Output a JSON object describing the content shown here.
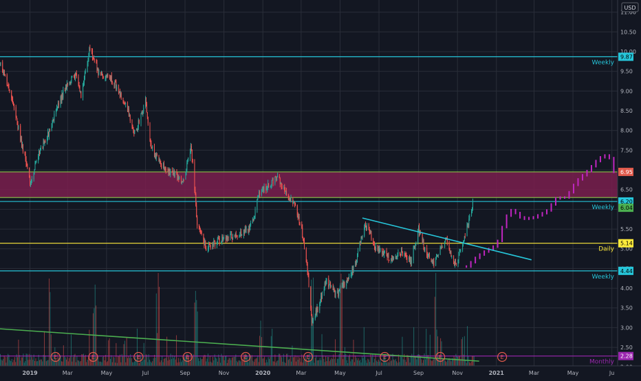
{
  "chart_data": {
    "type": "candlestick",
    "currency": "USD",
    "y_axis": {
      "range": [
        2.1,
        11.1
      ],
      "ticks": [
        "11.00",
        "10.50",
        "10.00",
        "9.50",
        "9.00",
        "8.50",
        "8.00",
        "7.50",
        "7.00",
        "6.50",
        "6.00",
        "5.50",
        "5.00",
        "4.50",
        "4.00",
        "3.50",
        "3.00",
        "2.50",
        "2.00"
      ]
    },
    "x_axis": {
      "range": [
        "2018-11-15",
        "2021-07-10"
      ],
      "ticks": [
        {
          "label": "2019",
          "date": "2019-01-01",
          "bold": true
        },
        {
          "label": "Mar",
          "date": "2019-03-01"
        },
        {
          "label": "May",
          "date": "2019-05-01"
        },
        {
          "label": "Jul",
          "date": "2019-07-01"
        },
        {
          "label": "Sep",
          "date": "2019-09-01"
        },
        {
          "label": "Nov",
          "date": "2019-11-01"
        },
        {
          "label": "2020",
          "date": "2020-01-01",
          "bold": true
        },
        {
          "label": "Mar",
          "date": "2020-03-01"
        },
        {
          "label": "May",
          "date": "2020-05-01"
        },
        {
          "label": "Jul",
          "date": "2020-07-01"
        },
        {
          "label": "Sep",
          "date": "2020-09-01"
        },
        {
          "label": "Nov",
          "date": "2020-11-01"
        },
        {
          "label": "2021",
          "date": "2021-01-01",
          "bold": true
        },
        {
          "label": "Mar",
          "date": "2021-03-01"
        },
        {
          "label": "May",
          "date": "2021-05-01"
        },
        {
          "label": "Ju",
          "date": "2021-07-01"
        }
      ]
    },
    "price_path": [
      [
        "2018-11-15",
        9.7
      ],
      [
        "2018-12-01",
        9.0
      ],
      [
        "2018-12-20",
        7.6
      ],
      [
        "2019-01-01",
        6.7
      ],
      [
        "2019-01-15",
        7.4
      ],
      [
        "2019-02-01",
        8.0
      ],
      [
        "2019-02-15",
        8.7
      ],
      [
        "2019-03-01",
        9.2
      ],
      [
        "2019-03-15",
        9.4
      ],
      [
        "2019-03-22",
        8.9
      ],
      [
        "2019-04-05",
        10.1
      ],
      [
        "2019-04-20",
        9.4
      ],
      [
        "2019-05-10",
        9.3
      ],
      [
        "2019-06-01",
        8.6
      ],
      [
        "2019-06-15",
        7.9
      ],
      [
        "2019-07-01",
        8.8
      ],
      [
        "2019-07-10",
        7.6
      ],
      [
        "2019-07-25",
        7.1
      ],
      [
        "2019-08-15",
        6.9
      ],
      [
        "2019-08-30",
        6.7
      ],
      [
        "2019-09-10",
        7.6
      ],
      [
        "2019-09-15",
        6.8
      ],
      [
        "2019-09-20",
        5.6
      ],
      [
        "2019-10-05",
        5.0
      ],
      [
        "2019-10-20",
        5.2
      ],
      [
        "2019-11-15",
        5.3
      ],
      [
        "2019-12-01",
        5.4
      ],
      [
        "2019-12-15",
        5.6
      ],
      [
        "2019-12-25",
        6.4
      ],
      [
        "2020-01-15",
        6.7
      ],
      [
        "2020-01-25",
        6.8
      ],
      [
        "2020-02-05",
        6.4
      ],
      [
        "2020-02-20",
        6.1
      ],
      [
        "2020-03-01",
        5.6
      ],
      [
        "2020-03-10",
        4.6
      ],
      [
        "2020-03-18",
        3.2
      ],
      [
        "2020-03-25",
        3.4
      ],
      [
        "2020-04-10",
        4.2
      ],
      [
        "2020-04-25",
        3.8
      ],
      [
        "2020-05-10",
        4.2
      ],
      [
        "2020-05-25",
        4.6
      ],
      [
        "2020-06-08",
        5.6
      ],
      [
        "2020-06-15",
        5.5
      ],
      [
        "2020-06-25",
        5.0
      ],
      [
        "2020-07-10",
        4.9
      ],
      [
        "2020-07-20",
        4.7
      ],
      [
        "2020-08-05",
        4.9
      ],
      [
        "2020-08-20",
        4.7
      ],
      [
        "2020-09-01",
        5.5
      ],
      [
        "2020-09-10",
        5.0
      ],
      [
        "2020-09-25",
        4.6
      ],
      [
        "2020-10-05",
        5.0
      ],
      [
        "2020-10-15",
        5.3
      ],
      [
        "2020-10-25",
        4.6
      ],
      [
        "2020-11-01",
        4.7
      ],
      [
        "2020-11-10",
        5.2
      ],
      [
        "2020-11-20",
        5.8
      ],
      [
        "2020-11-25",
        6.2
      ]
    ],
    "projection_path": [
      [
        "2020-11-15",
        4.55
      ],
      [
        "2020-12-01",
        4.8
      ],
      [
        "2020-12-15",
        4.95
      ],
      [
        "2021-01-01",
        5.1
      ],
      [
        "2021-01-15",
        5.8
      ],
      [
        "2021-01-25",
        6.0
      ],
      [
        "2021-02-10",
        5.75
      ],
      [
        "2021-03-01",
        5.8
      ],
      [
        "2021-03-20",
        5.95
      ],
      [
        "2021-04-05",
        6.3
      ],
      [
        "2021-04-20",
        6.3
      ],
      [
        "2021-05-05",
        6.7
      ],
      [
        "2021-05-25",
        7.0
      ],
      [
        "2021-06-10",
        7.3
      ],
      [
        "2021-06-25",
        7.4
      ],
      [
        "2021-07-05",
        6.9
      ]
    ],
    "zone": {
      "from": 6.3,
      "to": 6.95,
      "color": "#7a1f4e"
    },
    "levels": [
      {
        "price": 9.87,
        "label": "9.87",
        "tag": "Weekly",
        "color": "#26c6da",
        "text_color": "#000000"
      },
      {
        "price": 6.95,
        "label": "6.95",
        "tag": "",
        "color": "#8bc34a",
        "text_color": "#ffffff",
        "badge_color": "#e05a4c"
      },
      {
        "price": 6.3,
        "label": "",
        "tag": "",
        "color": "#8bc34a",
        "text_color": "#ffffff"
      },
      {
        "price": 6.2,
        "label": "6.20",
        "tag": "Weekly",
        "color": "#26c6da",
        "text_color": "#000000"
      },
      {
        "price": 6.04,
        "label": "6.04",
        "tag": "",
        "color": "#4caf50",
        "text_color": "#000000",
        "badge_only": true
      },
      {
        "price": 5.14,
        "label": "5.14",
        "tag": "Daily",
        "color": "#ffeb3b",
        "text_color": "#000000"
      },
      {
        "price": 4.44,
        "label": "4.44",
        "tag": "Weekly",
        "color": "#26c6da",
        "text_color": "#000000"
      },
      {
        "price": 2.28,
        "label": "2.28",
        "tag": "Monthly",
        "color": "#9c27b0",
        "text_color": "#ffffff"
      }
    ],
    "trendlines": [
      {
        "name": "descending-trendline",
        "color": "#26c6da",
        "from": [
          "2020-06-05",
          5.78
        ],
        "to": [
          "2021-02-25",
          4.72
        ]
      },
      {
        "name": "volume-trendline",
        "color": "#4caf50",
        "from": [
          "2018-11-15",
          2.97
        ],
        "to": [
          "2020-12-05",
          2.15
        ]
      }
    ],
    "earnings_markers": [
      "2019-02-10",
      "2019-04-10",
      "2019-06-20",
      "2019-09-05",
      "2019-12-05",
      "2020-03-12",
      "2020-07-10",
      "2020-10-05",
      "2021-01-10"
    ],
    "earnings_label": "E",
    "volume_spikes": [
      "2019-02-01",
      "2019-04-12",
      "2019-07-20",
      "2019-09-18",
      "2019-12-28",
      "2020-03-18",
      "2020-05-02",
      "2020-09-28"
    ],
    "colors": {
      "background": "#131722",
      "grid": "#2a2e39",
      "up": "#26a69a",
      "down": "#ef5350",
      "projection": "#c026c0",
      "axis_text": "#b2b5be"
    }
  }
}
